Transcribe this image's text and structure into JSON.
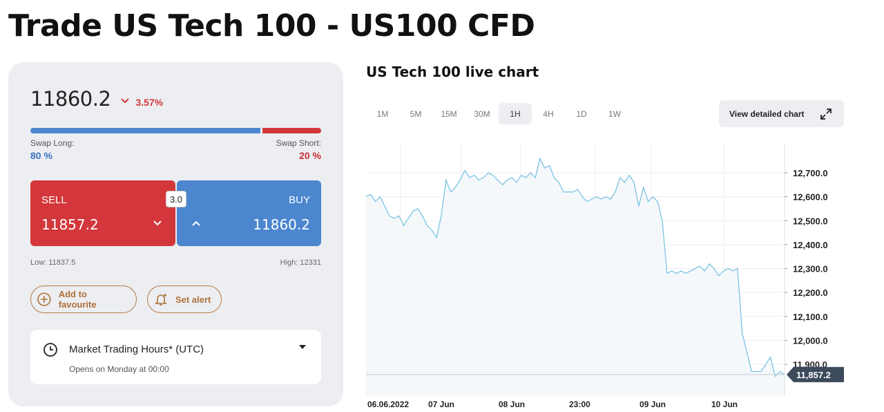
{
  "page": {
    "title": "Trade US Tech 100 - US100 CFD"
  },
  "quote": {
    "price": "11860.2",
    "change": "3.57%",
    "change_direction": "down",
    "swap_long_label": "Swap Long:",
    "swap_short_label": "Swap Short:",
    "swap_long_value": "80 %",
    "swap_short_value": "20 %",
    "swap_long_fraction": 0.8,
    "sell_label": "SELL",
    "sell_price": "11857.2",
    "buy_label": "BUY",
    "buy_price": "11860.2",
    "spread": "3.0",
    "low": "Low: 11837.5",
    "high": "High: 12331"
  },
  "actions": {
    "favourite_label": "Add to favourite",
    "alert_label": "Set alert"
  },
  "hours": {
    "title": "Market Trading Hours* (UTC)",
    "subtitle": "Opens on Monday at 00:00"
  },
  "colors": {
    "sell": "#d3373b",
    "buy": "#4b86cf",
    "accent": "#b0703a",
    "line": "#7cc3e2"
  },
  "chart": {
    "title": "US Tech 100 live chart",
    "timeframes": [
      "1M",
      "5M",
      "15M",
      "30M",
      "1H",
      "4H",
      "1D",
      "1W"
    ],
    "active_timeframe": "1H",
    "detail_label": "View detailed chart",
    "current_label": "11,857.2"
  },
  "chart_data": {
    "type": "area",
    "title": "",
    "xlabel": "",
    "ylabel": "",
    "x_ticks": [
      "06.06.2022",
      "07 Jun",
      "08 Jun",
      "23:00",
      "09 Jun",
      "10 Jun"
    ],
    "y_ticks": [
      "12,700.0",
      "12,600.0",
      "12,500.0",
      "12,400.0",
      "12,300.0",
      "12,200.0",
      "12,100.0",
      "12,000.0",
      "11,900.0"
    ],
    "y_tick_values": [
      12700,
      12600,
      12500,
      12400,
      12300,
      12200,
      12100,
      12000,
      11900
    ],
    "ylim": [
      11800,
      12800
    ],
    "current_value": 11857.2,
    "grid": true,
    "series": [
      {
        "values": [
          12600,
          12610,
          12580,
          12600,
          12560,
          12520,
          12510,
          12520,
          12480,
          12510,
          12540,
          12550,
          12520,
          12480,
          12460,
          12430,
          12520,
          12670,
          12620,
          12640,
          12670,
          12710,
          12680,
          12690,
          12670,
          12680,
          12700,
          12690,
          12670,
          12650,
          12670,
          12680,
          12660,
          12690,
          12680,
          12700,
          12680,
          12760,
          12720,
          12730,
          12680,
          12660,
          12620,
          12620,
          12620,
          12630,
          12600,
          12580,
          12590,
          12600,
          12590,
          12600,
          12590,
          12620,
          12680,
          12660,
          12690,
          12660,
          12560,
          12640,
          12580,
          12600,
          12580,
          12500,
          12280,
          12290,
          12280,
          12290,
          12280,
          12290,
          12300,
          12310,
          12290,
          12320,
          12300,
          12270,
          12290,
          12300,
          12290,
          12300,
          12030,
          11950,
          11870,
          11870,
          11870,
          11900,
          11930,
          11850,
          11870,
          11857
        ]
      }
    ]
  }
}
